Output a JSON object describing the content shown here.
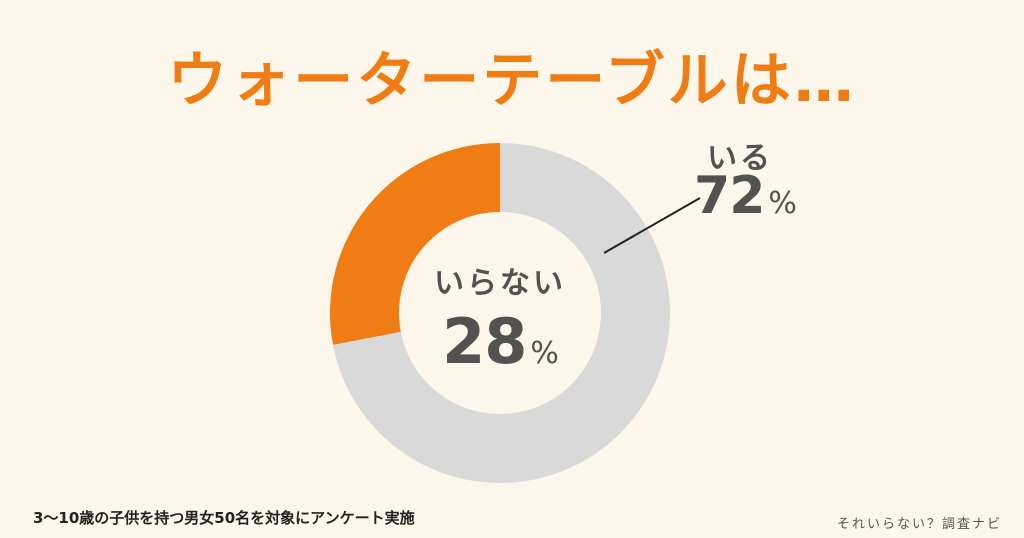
{
  "title": "ウォーターテーブルは…",
  "colors": {
    "background": "#fdf6ea",
    "accent": "#f07c14",
    "secondary": "#d9d9d9",
    "text": "#545250",
    "leader": "#222222"
  },
  "labels": {
    "inner_name": "いらない",
    "inner_value": "28",
    "inner_unit": "%",
    "outer_name": "いる",
    "outer_value": "72",
    "outer_unit": "%"
  },
  "footnote": "3〜10歳の子供を持つ男女50名を対象にアンケート実施",
  "brand": "それいらない？調査ナビ",
  "chart_data": {
    "type": "pie",
    "variant": "donut",
    "title": "ウォーターテーブルは…",
    "categories": [
      "いらない",
      "いる"
    ],
    "values": [
      28,
      72
    ],
    "unit": "%",
    "colors": [
      "#f07c14",
      "#d9d9d9"
    ],
    "start_angle": "12 o'clock",
    "direction_first_slice": "counter-clockwise",
    "annotations": [
      {
        "text": "いらない 28%",
        "position": "donut center"
      },
      {
        "text": "いる 72%",
        "position": "upper right with leader line"
      }
    ],
    "note": "3〜10歳の子供を持つ男女50名を対象にアンケート実施",
    "legend": "none"
  }
}
